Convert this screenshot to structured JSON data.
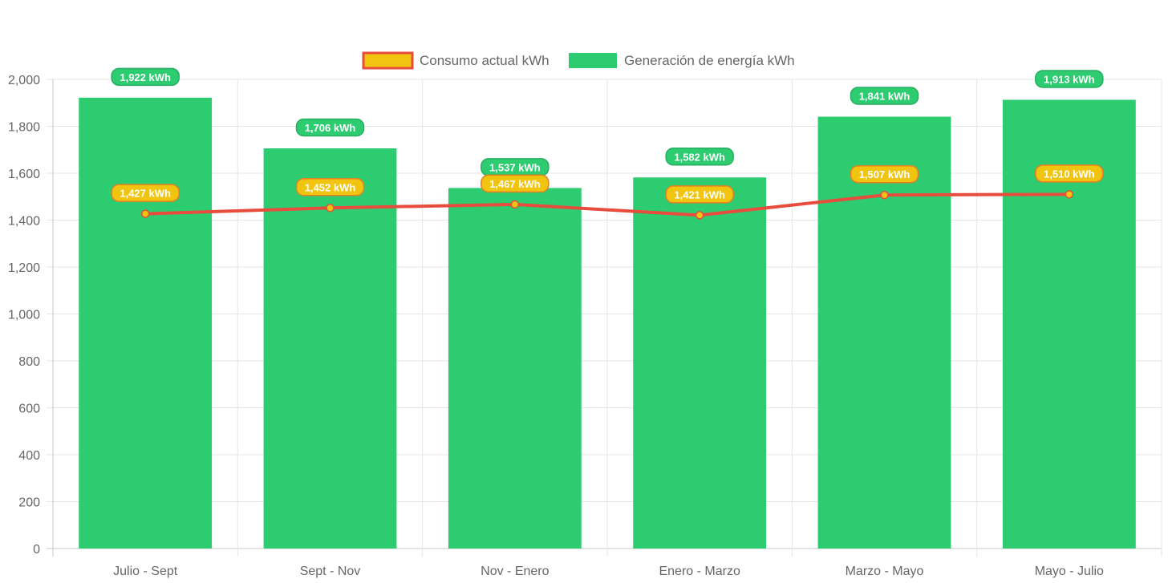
{
  "chart_data": {
    "type": "bar",
    "categories": [
      "Julio - Sept",
      "Sept - Nov",
      "Nov - Enero",
      "Enero - Marzo",
      "Marzo - Mayo",
      "Mayo - Julio"
    ],
    "series": [
      {
        "name": "Consumo actual kWh",
        "type": "line",
        "values": [
          1427,
          1452,
          1467,
          1421,
          1507,
          1510
        ],
        "labels": [
          "1,427 kWh",
          "1,452 kWh",
          "1,467 kWh",
          "1,421 kWh",
          "1,507 kWh",
          "1,510 kWh"
        ],
        "color": "#e74c3c",
        "point_color": "#f1c40f"
      },
      {
        "name": "Generación de energía kWh",
        "type": "bar",
        "values": [
          1922,
          1706,
          1537,
          1582,
          1841,
          1913
        ],
        "labels": [
          "1,922 kWh",
          "1,706 kWh",
          "1,537 kWh",
          "1,582 kWh",
          "1,841 kWh",
          "1,913 kWh"
        ],
        "color": "#2ecc71"
      }
    ],
    "ylim": [
      0,
      2000
    ],
    "yticks": [
      "0",
      "200",
      "400",
      "600",
      "800",
      "1,000",
      "1,200",
      "1,400",
      "1,600",
      "1,800",
      "2,000"
    ],
    "grid": true,
    "legend_position": "top"
  }
}
